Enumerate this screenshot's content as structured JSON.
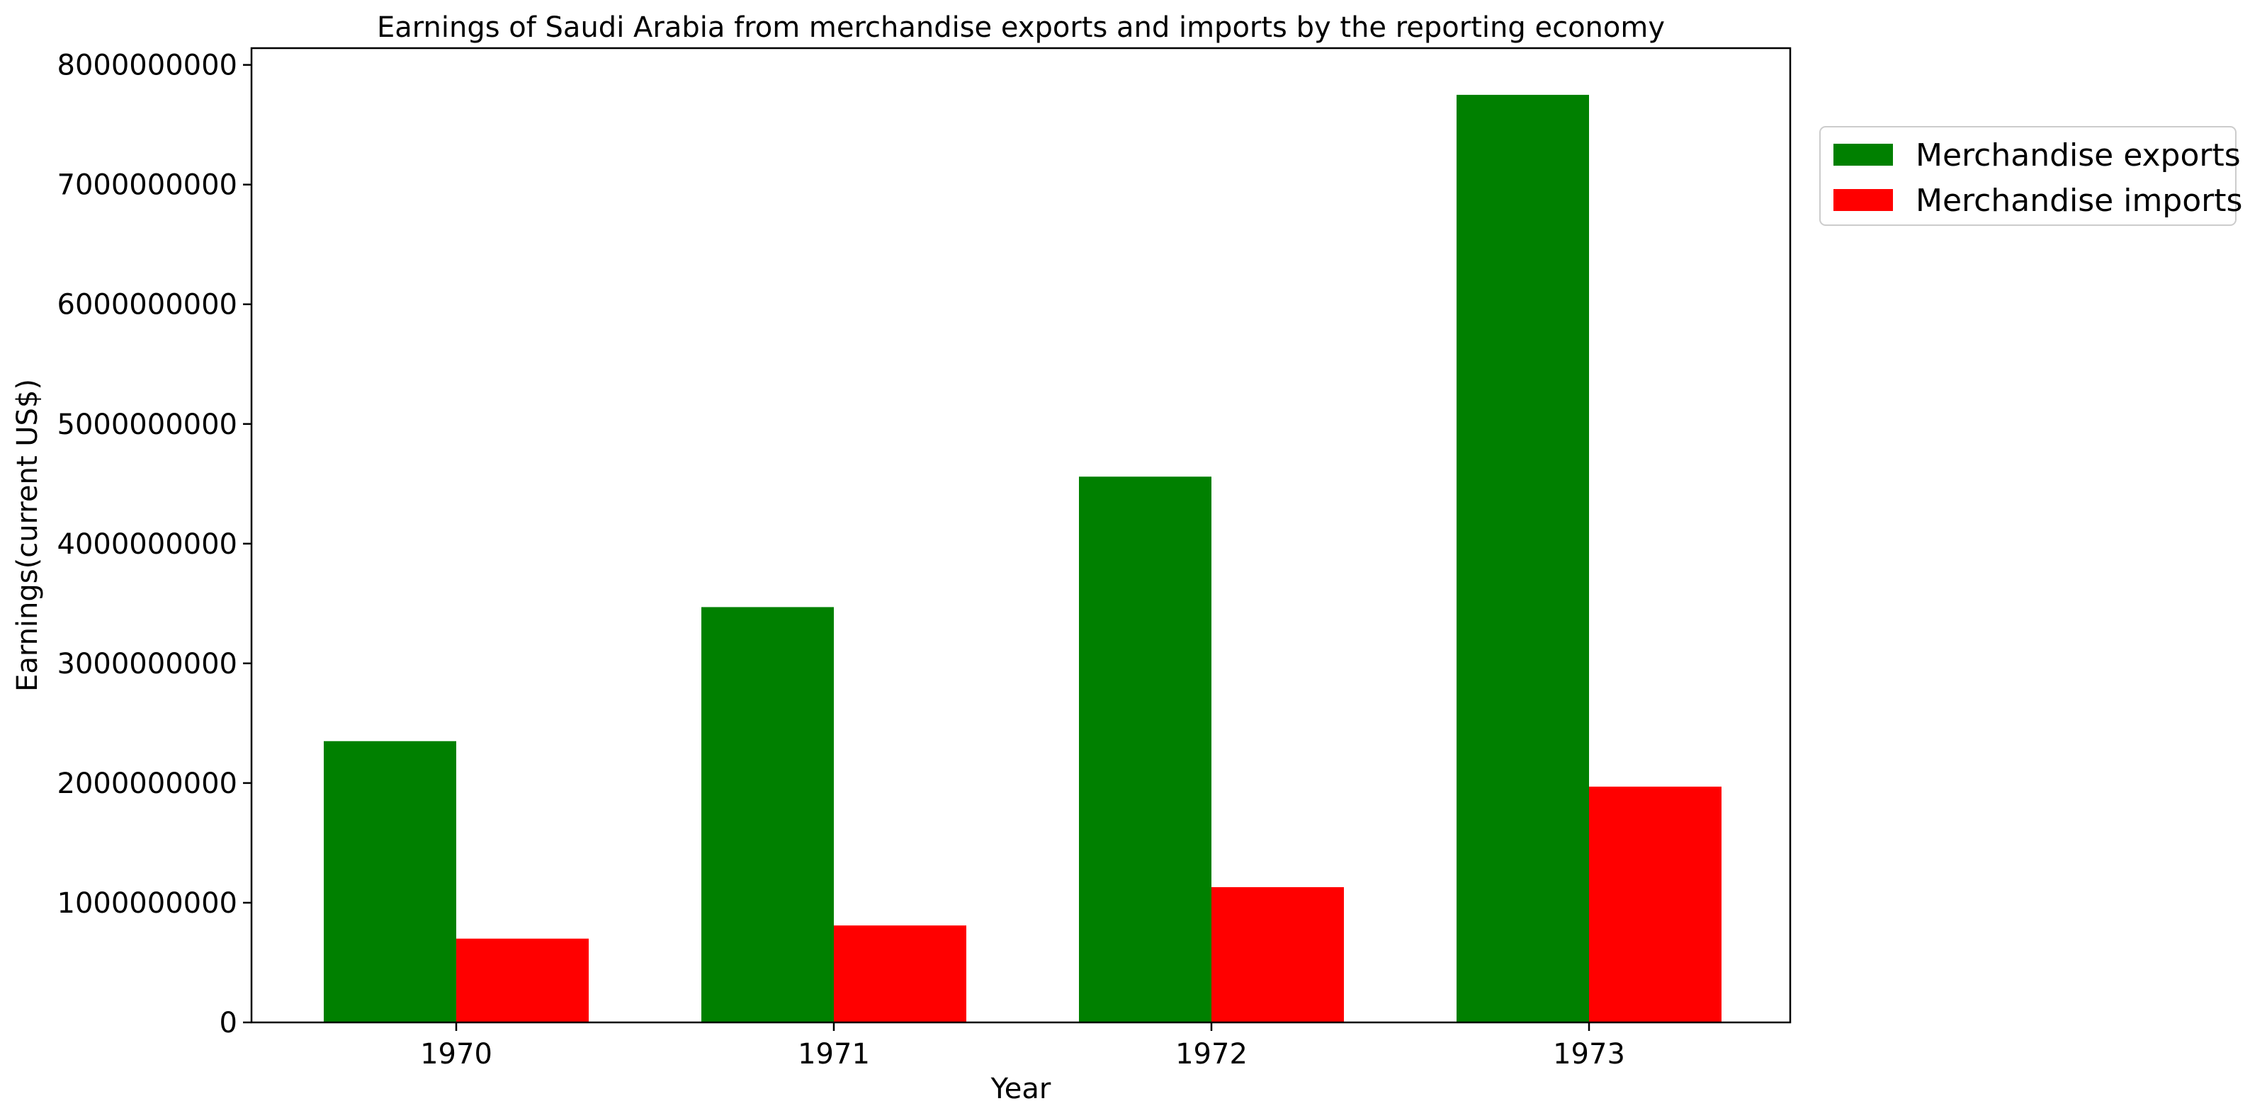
{
  "chart_data": {
    "type": "bar",
    "title": "Earnings of Saudi Arabia from merchandise exports and imports by the reporting economy",
    "xlabel": "Year",
    "ylabel": "Earnings(current US$)",
    "categories": [
      "1970",
      "1971",
      "1972",
      "1973"
    ],
    "series": [
      {
        "name": "Merchandise exports",
        "color": "#008000",
        "values": [
          2350000000,
          3470000000,
          4560000000,
          7750000000
        ]
      },
      {
        "name": "Merchandise imports",
        "color": "#ff0000",
        "values": [
          700000000,
          810000000,
          1130000000,
          1970000000
        ]
      }
    ],
    "ylim": [
      0,
      8140000000
    ],
    "yticks": [
      0,
      1000000000,
      2000000000,
      3000000000,
      4000000000,
      5000000000,
      6000000000,
      7000000000,
      8000000000
    ],
    "ytick_labels": [
      "0",
      "1000000000",
      "2000000000",
      "3000000000",
      "4000000000",
      "5000000000",
      "6000000000",
      "7000000000",
      "8000000000"
    ],
    "grid": false,
    "legend_position": "outside-top-right"
  }
}
